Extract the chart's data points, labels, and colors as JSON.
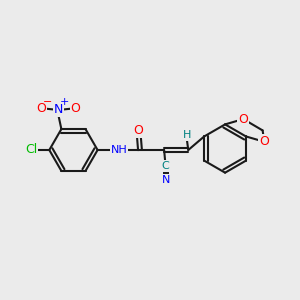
{
  "background_color": "#ebebeb",
  "bond_color": "#1a1a1a",
  "atom_colors": {
    "O": "#ff0000",
    "N": "#0000ff",
    "Cl": "#00bb00",
    "C_cyan": "#008080",
    "H": "#008080"
  },
  "figsize": [
    3.0,
    3.0
  ],
  "dpi": 100
}
